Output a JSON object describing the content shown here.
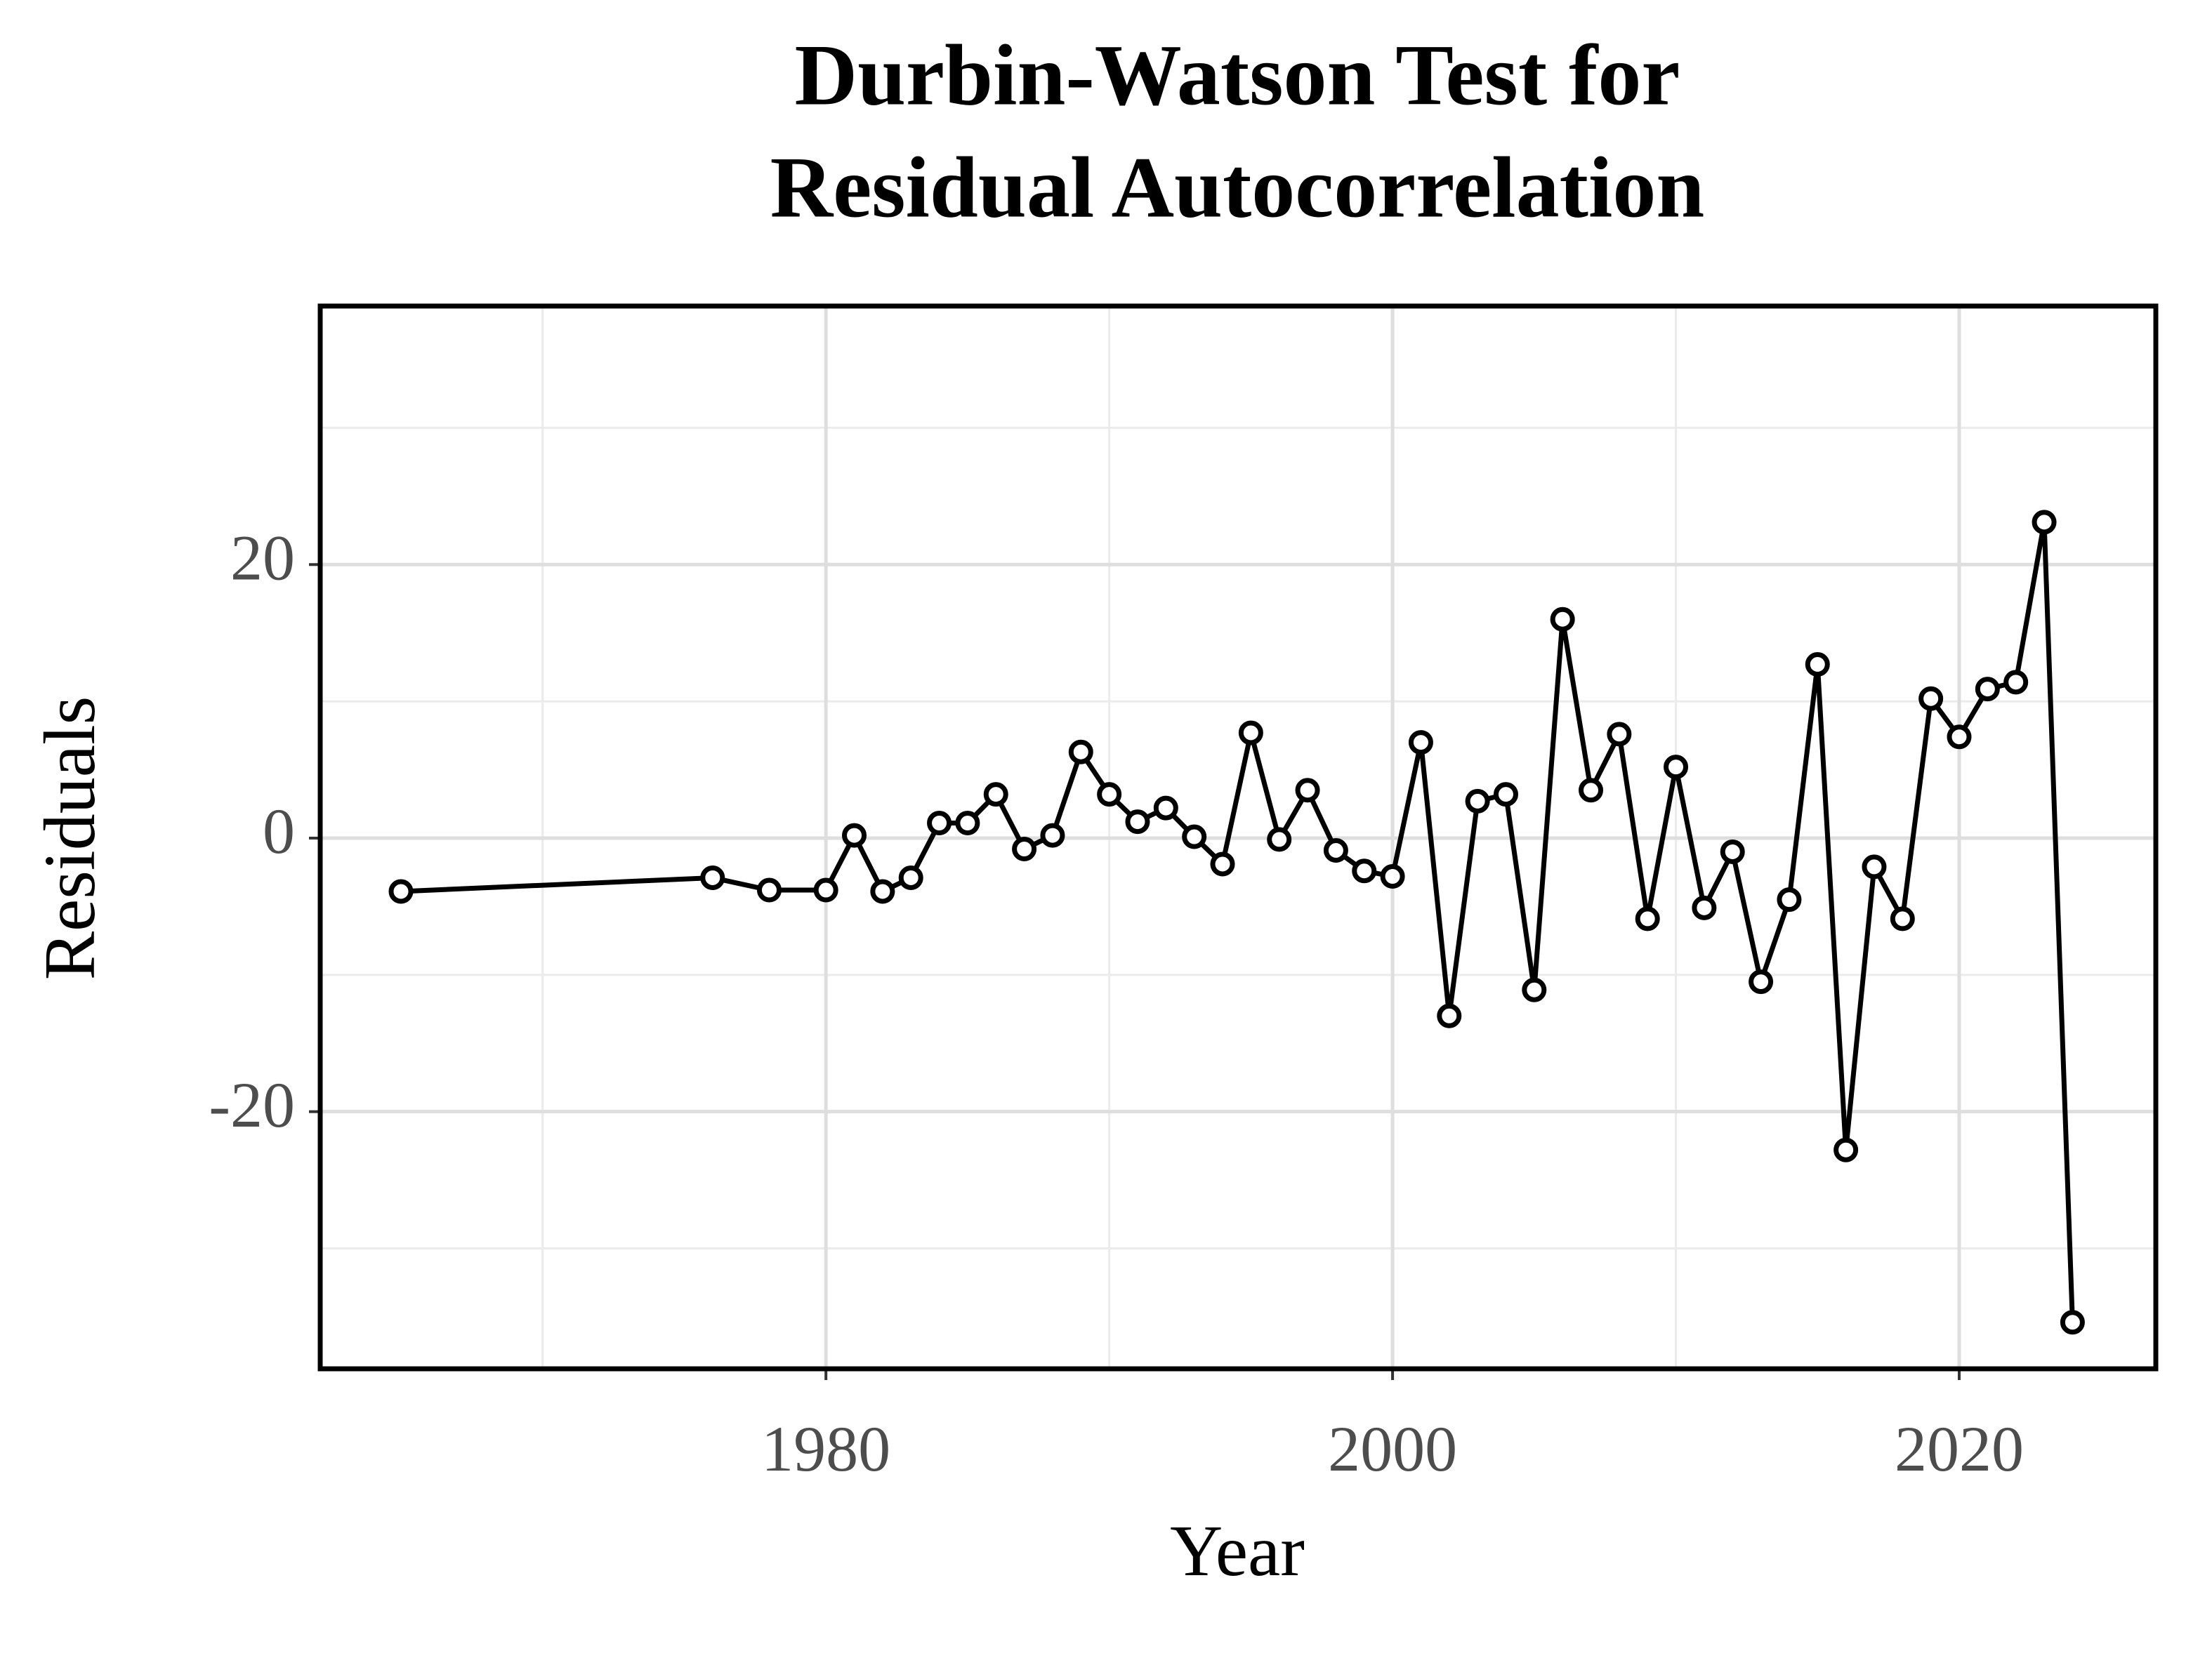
{
  "chart_data": {
    "type": "line",
    "title": "Durbin-Watson Test for Residual Autocorrelation",
    "x_label": "Year",
    "y_label": "Residuals",
    "x": [
      1965,
      1976,
      1978,
      1980,
      1981,
      1982,
      1983,
      1984,
      1985,
      1986,
      1987,
      1988,
      1989,
      1990,
      1991,
      1992,
      1993,
      1994,
      1995,
      1996,
      1997,
      1998,
      1999,
      2000,
      2001,
      2002,
      2003,
      2004,
      2005,
      2006,
      2007,
      2008,
      2009,
      2010,
      2011,
      2012,
      2013,
      2014,
      2015,
      2016,
      2017,
      2018,
      2019,
      2020,
      2021,
      2022,
      2023,
      2024
    ],
    "series": [
      {
        "name": "Residuals",
        "color": "#000000",
        "values": [
          -3.9,
          -2.9,
          -3.8,
          -3.8,
          0.2,
          -3.9,
          -2.9,
          1.1,
          1.1,
          3.2,
          -0.8,
          0.2,
          6.3,
          3.2,
          1.2,
          2.2,
          0.1,
          -1.9,
          7.7,
          -0.1,
          3.5,
          -0.9,
          -2.4,
          -2.8,
          7.0,
          -13.0,
          2.7,
          3.2,
          -11.1,
          16.0,
          3.5,
          7.6,
          -5.9,
          5.2,
          -5.1,
          -1.0,
          -10.5,
          -4.5,
          12.7,
          -22.8,
          -2.1,
          -5.9,
          10.2,
          7.4,
          10.9,
          11.4,
          23.1,
          -35.4
        ]
      }
    ],
    "xlim": [
      1962.15,
      2026.94
    ],
    "xticks": [
      1980,
      2000,
      2020
    ],
    "ylim": [
      -38.8,
      38.9
    ],
    "yticks": [
      -20,
      0,
      20
    ],
    "grid": true
  }
}
